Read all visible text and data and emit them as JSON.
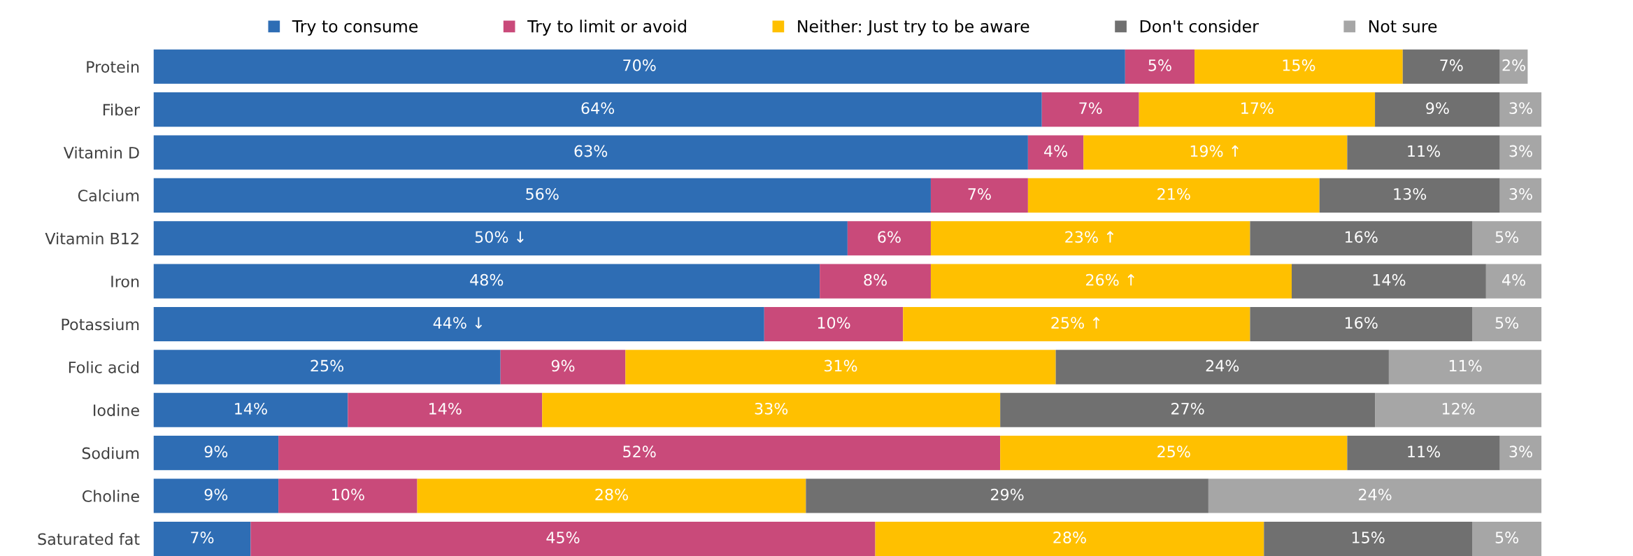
{
  "chart_data": {
    "type": "bar",
    "orientation": "horizontal",
    "stacked": true,
    "legend": "top",
    "categories": [
      "Protein",
      "Fiber",
      "Vitamin D",
      "Calcium",
      "Vitamin B12",
      "Iron",
      "Potassium",
      "Folic acid",
      "Iodine",
      "Sodium",
      "Choline",
      "Saturated fat"
    ],
    "series": [
      {
        "name": "Try to consume",
        "color": "#2e6db4",
        "values": [
          70,
          64,
          63,
          56,
          50,
          48,
          44,
          25,
          14,
          9,
          9,
          7
        ],
        "value_labels": [
          "70%",
          "64%",
          "63%",
          "56%",
          "50% ↓",
          "48%",
          "44% ↓",
          "25%",
          "14%",
          "9%",
          "9%",
          "7%"
        ]
      },
      {
        "name": "Try to limit or avoid",
        "color": "#c94a7a",
        "values": [
          5,
          7,
          4,
          7,
          6,
          8,
          10,
          9,
          14,
          52,
          10,
          45
        ],
        "value_labels": [
          "5%",
          "7%",
          "4%",
          "7%",
          "6%",
          "8%",
          "10%",
          "9%",
          "14%",
          "52%",
          "10%",
          "45%"
        ]
      },
      {
        "name": "Neither: Just try to be aware",
        "color": "#ffc000",
        "values": [
          15,
          17,
          19,
          21,
          23,
          26,
          25,
          31,
          33,
          25,
          28,
          28
        ],
        "value_labels": [
          "15%",
          "17%",
          "19% ↑",
          "21%",
          "23% ↑",
          "26% ↑",
          "25% ↑",
          "31%",
          "33%",
          "25%",
          "28%",
          "28%"
        ]
      },
      {
        "name": "Don't consider",
        "color": "#707070",
        "values": [
          7,
          9,
          11,
          13,
          16,
          14,
          16,
          24,
          27,
          11,
          29,
          15
        ],
        "value_labels": [
          "7%",
          "9%",
          "11%",
          "13%",
          "16%",
          "14%",
          "16%",
          "24%",
          "27%",
          "11%",
          "29%",
          "15%"
        ]
      },
      {
        "name": "Not sure",
        "color": "#a6a6a6",
        "values": [
          2,
          3,
          3,
          3,
          5,
          4,
          5,
          11,
          12,
          3,
          24,
          5
        ],
        "value_labels": [
          "2%",
          "3%",
          "3%",
          "3%",
          "5%",
          "4%",
          "5%",
          "11%",
          "12%",
          "3%",
          "24%",
          "5%"
        ]
      }
    ]
  }
}
